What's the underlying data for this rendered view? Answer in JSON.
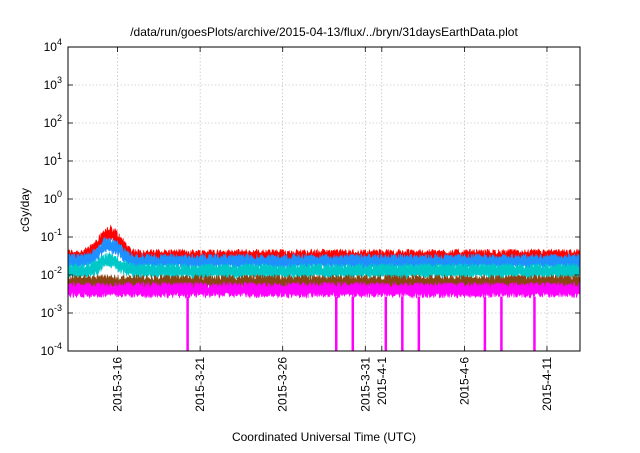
{
  "chart_data": {
    "type": "line",
    "title": "/data/run/goesPlots/archive/2015-04-13/flux/../bryn/31daysEarthData.plot",
    "xlabel": "Coordinated Universal Time (UTC)",
    "ylabel": "cGy/day",
    "y_scale": "log",
    "ylim": [
      0.0001,
      10000
    ],
    "xlim": [
      "2015-03-13",
      "2015-04-13"
    ],
    "grid": true,
    "y_ticks": [
      {
        "base": "10",
        "exp": "-4"
      },
      {
        "base": "10",
        "exp": "-3"
      },
      {
        "base": "10",
        "exp": "-2"
      },
      {
        "base": "10",
        "exp": "-1"
      },
      {
        "base": "10",
        "exp": "0"
      },
      {
        "base": "10",
        "exp": "1"
      },
      {
        "base": "10",
        "exp": "2"
      },
      {
        "base": "10",
        "exp": "3"
      },
      {
        "base": "10",
        "exp": "4"
      }
    ],
    "x_ticks": [
      "2015-3-16",
      "2015-3-21",
      "2015-3-26",
      "2015-3-31",
      "2015-4-1",
      "2015-4-6",
      "2015-4-11"
    ],
    "x_tick_dates": [
      "2015-03-16",
      "2015-03-21",
      "2015-03-26",
      "2015-03-31",
      "2015-04-01",
      "2015-04-06",
      "2015-04-11"
    ],
    "series": [
      {
        "color": "#ff0000",
        "typical": 0.033,
        "peak": {
          "x": "2015-03-15",
          "y": 0.15
        }
      },
      {
        "color": "#1e90ff",
        "typical": 0.025,
        "peak": {
          "x": "2015-03-15",
          "y": 0.08
        }
      },
      {
        "color": "#00c8c8",
        "typical": 0.014,
        "peak": {
          "x": "2015-03-15",
          "y": 0.03
        }
      },
      {
        "color": "#8b4513",
        "typical": 0.007
      },
      {
        "color": "#ff00ff",
        "typical": 0.0045,
        "dropouts": [
          "2015-03-20",
          "2015-03-29",
          "2015-03-30",
          "2015-04-01",
          "2015-04-02",
          "2015-04-03",
          "2015-04-07",
          "2015-04-08",
          "2015-04-10"
        ]
      }
    ]
  }
}
